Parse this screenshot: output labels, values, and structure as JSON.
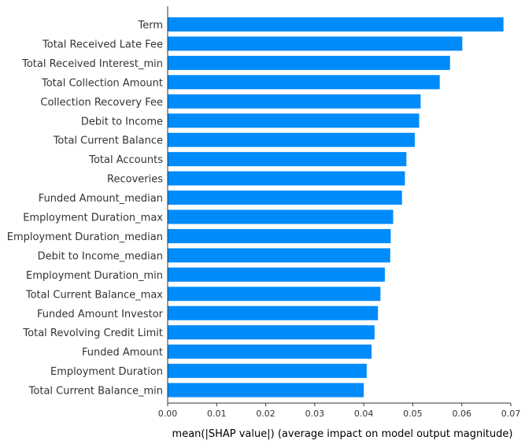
{
  "chart_data": {
    "type": "bar",
    "orientation": "horizontal",
    "categories": [
      "Term",
      "Total Received Late Fee",
      "Total Received Interest_min",
      "Total Collection Amount",
      "Collection Recovery Fee",
      "Debit to Income",
      "Total Current Balance",
      "Total Accounts",
      "Recoveries",
      "Funded Amount_median",
      "Employment Duration_max",
      "Employment Duration_median",
      "Debit to Income_median",
      "Employment Duration_min",
      "Total Current Balance_max",
      "Funded Amount Investor",
      "Total Revolving Credit Limit",
      "Funded Amount",
      "Employment Duration",
      "Total Current Balance_min"
    ],
    "values": [
      0.0685,
      0.0601,
      0.0576,
      0.0555,
      0.0516,
      0.0513,
      0.0504,
      0.0487,
      0.0484,
      0.0478,
      0.046,
      0.0455,
      0.0454,
      0.0443,
      0.0434,
      0.0429,
      0.0422,
      0.0416,
      0.0406,
      0.04
    ],
    "xlabel": "mean(|SHAP value|) (average impact on model output magnitude)",
    "ylabel": "",
    "title": "",
    "xlim": [
      0,
      0.07
    ],
    "xticks": [
      "0.00",
      "0.01",
      "0.02",
      "0.03",
      "0.04",
      "0.05",
      "0.06",
      "0.07"
    ],
    "bar_color": "#008bfb",
    "grid": false
  }
}
